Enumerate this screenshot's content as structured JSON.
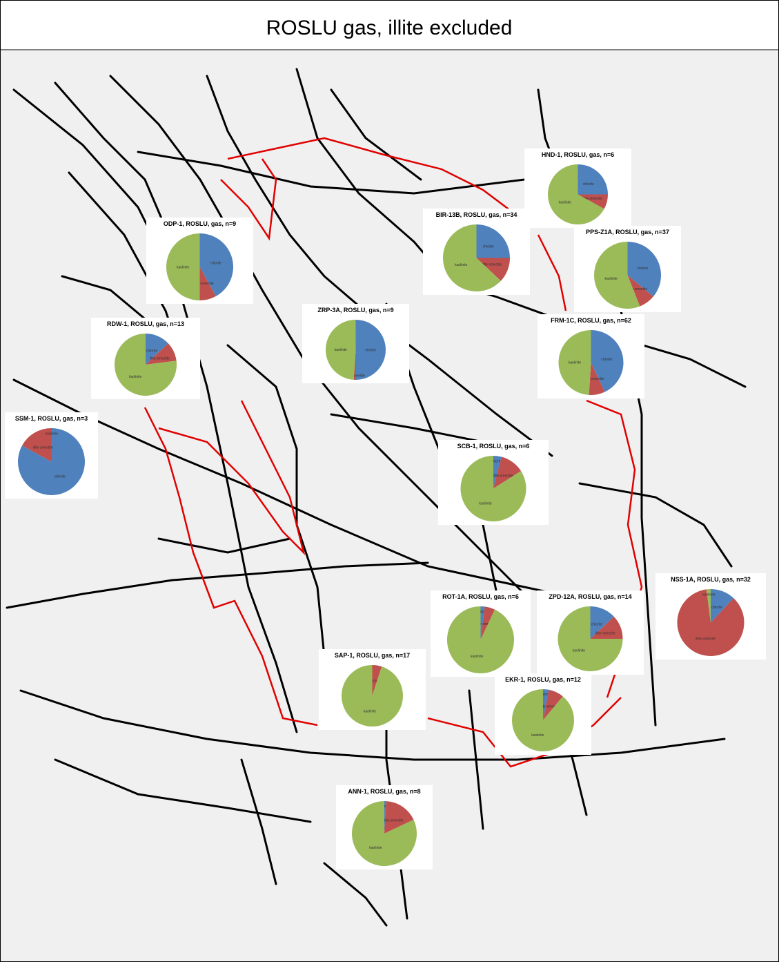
{
  "title": "ROSLU gas, illite excluded",
  "chart_data": [
    {
      "type": "pie",
      "title": "HND-1, ROSLU, gas, n=6",
      "categories": [
        "chlorite",
        "illite-smectite",
        "kaolinite"
      ],
      "values": [
        25,
        8,
        67
      ],
      "colors": [
        "#4f81bd",
        "#c0504d",
        "#9bbb59"
      ]
    },
    {
      "type": "pie",
      "title": "ODP-1, ROSLU, gas, n=9",
      "categories": [
        "chlorite",
        "illite-smectite",
        "kaolinite"
      ],
      "values": [
        42,
        8,
        50
      ],
      "colors": [
        "#4f81bd",
        "#c0504d",
        "#9bbb59"
      ]
    },
    {
      "type": "pie",
      "title": "BIR-13B, ROSLU, gas, n=34",
      "categories": [
        "chlorite",
        "illite-smectite",
        "kaolinite"
      ],
      "values": [
        25,
        12,
        63
      ],
      "colors": [
        "#4f81bd",
        "#c0504d",
        "#9bbb59"
      ]
    },
    {
      "type": "pie",
      "title": "PPS-Z1A, ROSLU, gas, n=37",
      "categories": [
        "chlorite",
        "illite-smectite",
        "kaolinite"
      ],
      "values": [
        36,
        8,
        56
      ],
      "colors": [
        "#4f81bd",
        "#c0504d",
        "#9bbb59"
      ]
    },
    {
      "type": "pie",
      "title": "RDW-1, ROSLU, gas, n=13",
      "categories": [
        "chlorite",
        "illite-smectite",
        "kaolinite"
      ],
      "values": [
        13,
        10,
        77
      ],
      "colors": [
        "#4f81bd",
        "#c0504d",
        "#9bbb59"
      ]
    },
    {
      "type": "pie",
      "title": "ZRP-3A, ROSLU, gas, n=9",
      "categories": [
        "chlorite",
        "illite-smectite",
        "kaolinite"
      ],
      "values": [
        50,
        1,
        49
      ],
      "colors": [
        "#4f81bd",
        "#c0504d",
        "#9bbb59"
      ]
    },
    {
      "type": "pie",
      "title": "FRM-1C, ROSLU, gas, n=62",
      "categories": [
        "chlorite",
        "illite-smectite",
        "kaolinite"
      ],
      "values": [
        43,
        8,
        49
      ],
      "colors": [
        "#4f81bd",
        "#c0504d",
        "#9bbb59"
      ]
    },
    {
      "type": "pie",
      "title": "SSM-1, ROSLU, gas, n=3",
      "categories": [
        "chlorite",
        "illite-smectite",
        "kaolinite"
      ],
      "values": [
        83,
        17,
        0
      ],
      "colors": [
        "#4f81bd",
        "#c0504d",
        "#9bbb59"
      ]
    },
    {
      "type": "pie",
      "title": "SCB-1, ROSLU, gas, n=6",
      "categories": [
        "chlorite",
        "illite-smectite",
        "kaolinite"
      ],
      "values": [
        4,
        12,
        84
      ],
      "colors": [
        "#4f81bd",
        "#c0504d",
        "#9bbb59"
      ]
    },
    {
      "type": "pie",
      "title": "ROT-1A, ROSLU, gas, n=6",
      "categories": [
        "chlorite",
        "illite-smectite",
        "kaolinite"
      ],
      "values": [
        2,
        5,
        93
      ],
      "colors": [
        "#4f81bd",
        "#c0504d",
        "#9bbb59"
      ]
    },
    {
      "type": "pie",
      "title": "ZPD-12A, ROSLU, gas, n=14",
      "categories": [
        "chlorite",
        "illite-smectite",
        "kaolinite"
      ],
      "values": [
        13,
        12,
        75
      ],
      "colors": [
        "#4f81bd",
        "#c0504d",
        "#9bbb59"
      ]
    },
    {
      "type": "pie",
      "title": "NSS-1A, ROSLU, gas, n=32",
      "categories": [
        "chlorite",
        "illite-smectite",
        "kaolinite"
      ],
      "values": [
        12,
        86,
        2
      ],
      "colors": [
        "#4f81bd",
        "#c0504d",
        "#9bbb59"
      ]
    },
    {
      "type": "pie",
      "title": "SAP-1, ROSLU, gas, n=17",
      "categories": [
        "chlorite",
        "illite-smectite",
        "kaolinite"
      ],
      "values": [
        0,
        5,
        95
      ],
      "colors": [
        "#4f81bd",
        "#c0504d",
        "#9bbb59"
      ]
    },
    {
      "type": "pie",
      "title": "EKR-1, ROSLU, gas, n=12",
      "categories": [
        "chlorite",
        "illite-smectite",
        "kaolinite"
      ],
      "values": [
        3,
        8,
        89
      ],
      "colors": [
        "#4f81bd",
        "#c0504d",
        "#9bbb59"
      ]
    },
    {
      "type": "pie",
      "title": "ANN-1, ROSLU, gas, n=8",
      "categories": [
        "chlorite",
        "illite-smectite",
        "kaolinite"
      ],
      "values": [
        1,
        17,
        82
      ],
      "colors": [
        "#4f81bd",
        "#c0504d",
        "#9bbb59"
      ]
    }
  ]
}
